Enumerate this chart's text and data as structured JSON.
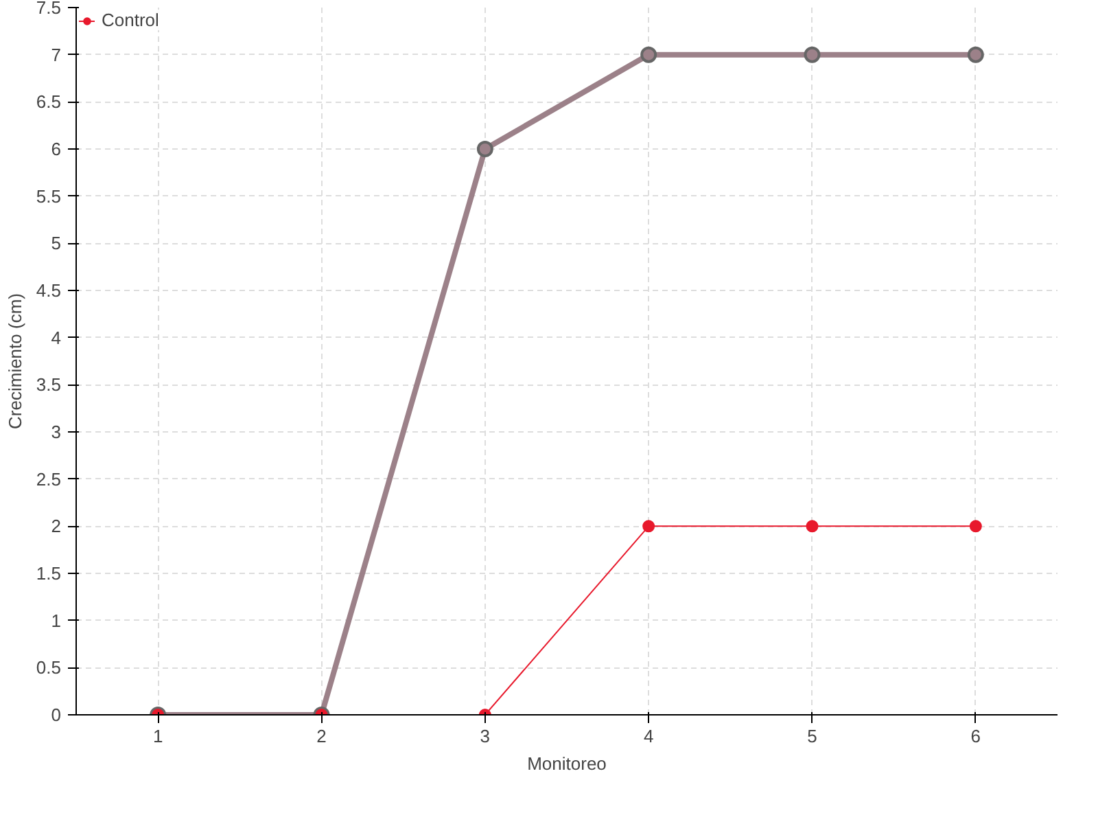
{
  "chart_data": {
    "type": "line",
    "xlabel": "Monitoreo",
    "ylabel": "Crecimiento (cm)",
    "x": [
      1,
      2,
      3,
      4,
      5,
      6
    ],
    "series": [
      {
        "color": "#9c8189",
        "values": [
          0,
          0,
          6,
          7,
          7,
          7
        ]
      },
      {
        "name": "Control",
        "color": "#e8192c",
        "values": [
          0,
          0,
          0,
          2,
          2,
          2
        ]
      }
    ],
    "xlim": [
      0.5,
      6.5
    ],
    "xticks": [
      1,
      2,
      3,
      4,
      5,
      6
    ],
    "ylim": [
      0,
      7.5
    ],
    "yticks": [
      0,
      0.5,
      1,
      1.5,
      2,
      2.5,
      3,
      3.5,
      4,
      4.5,
      5,
      5.5,
      6,
      6.5,
      7,
      7.5
    ],
    "grid": true,
    "legend": "top left",
    "marker": "circle",
    "line_style": "solid"
  }
}
